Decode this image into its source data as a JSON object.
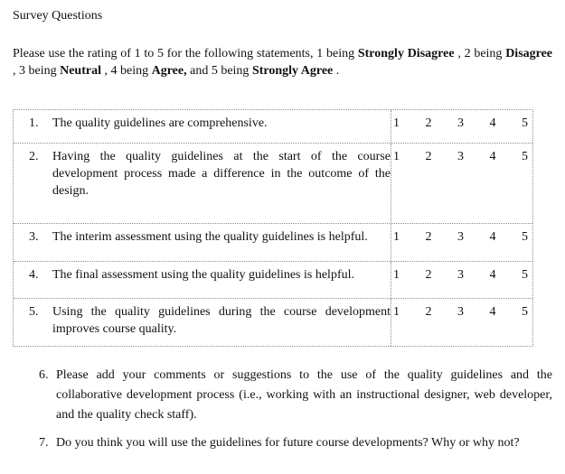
{
  "page": {
    "title": "Survey Questions"
  },
  "intro": {
    "segments": [
      {
        "text": "Please use the rating of 1 to 5 for the following statements, 1 being ",
        "bold": false
      },
      {
        "text": "Strongly Disagree",
        "bold": true
      },
      {
        "text": ", 2 being ",
        "bold": false
      },
      {
        "text": "Disagree",
        "bold": true
      },
      {
        "text": ", 3 being ",
        "bold": false
      },
      {
        "text": "Neutral",
        "bold": true
      },
      {
        "text": ", 4 being ",
        "bold": false
      },
      {
        "text": "Agree,",
        "bold": true
      },
      {
        "text": " and 5 being ",
        "bold": false
      },
      {
        "text": "Strongly Agree",
        "bold": true
      },
      {
        "text": ".",
        "bold": false
      }
    ]
  },
  "table": {
    "rows": [
      {
        "number": "1.",
        "text": "The quality guidelines are comprehensive.",
        "ratings": [
          "1",
          "2",
          "3",
          "4",
          "5"
        ]
      },
      {
        "number": "2.",
        "text": "Having the quality guidelines at the start of the course development process made a difference in the outcome of the design.",
        "ratings": [
          "1",
          "2",
          "3",
          "4",
          "5"
        ]
      },
      {
        "number": "3.",
        "text": "The interim assessment using the quality guidelines is helpful.",
        "ratings": [
          "1",
          "2",
          "3",
          "4",
          "5"
        ]
      },
      {
        "number": "4.",
        "text": "The final assessment using the quality guidelines is helpful.",
        "ratings": [
          "1",
          "2",
          "3",
          "4",
          "5"
        ]
      },
      {
        "number": "5.",
        "text": "Using the quality guidelines during the course development improves course quality.",
        "ratings": [
          "1",
          "2",
          "3",
          "4",
          "5"
        ]
      }
    ]
  },
  "questions": [
    {
      "number": "6.",
      "text": "Please add your comments or suggestions to the use of the quality guidelines and the collaborative development process (i.e., working with an instructional designer, web developer, and the quality check staff)."
    },
    {
      "number": "7.",
      "text": "Do you think you will use the guidelines for future course developments? Why or why not?"
    }
  ]
}
